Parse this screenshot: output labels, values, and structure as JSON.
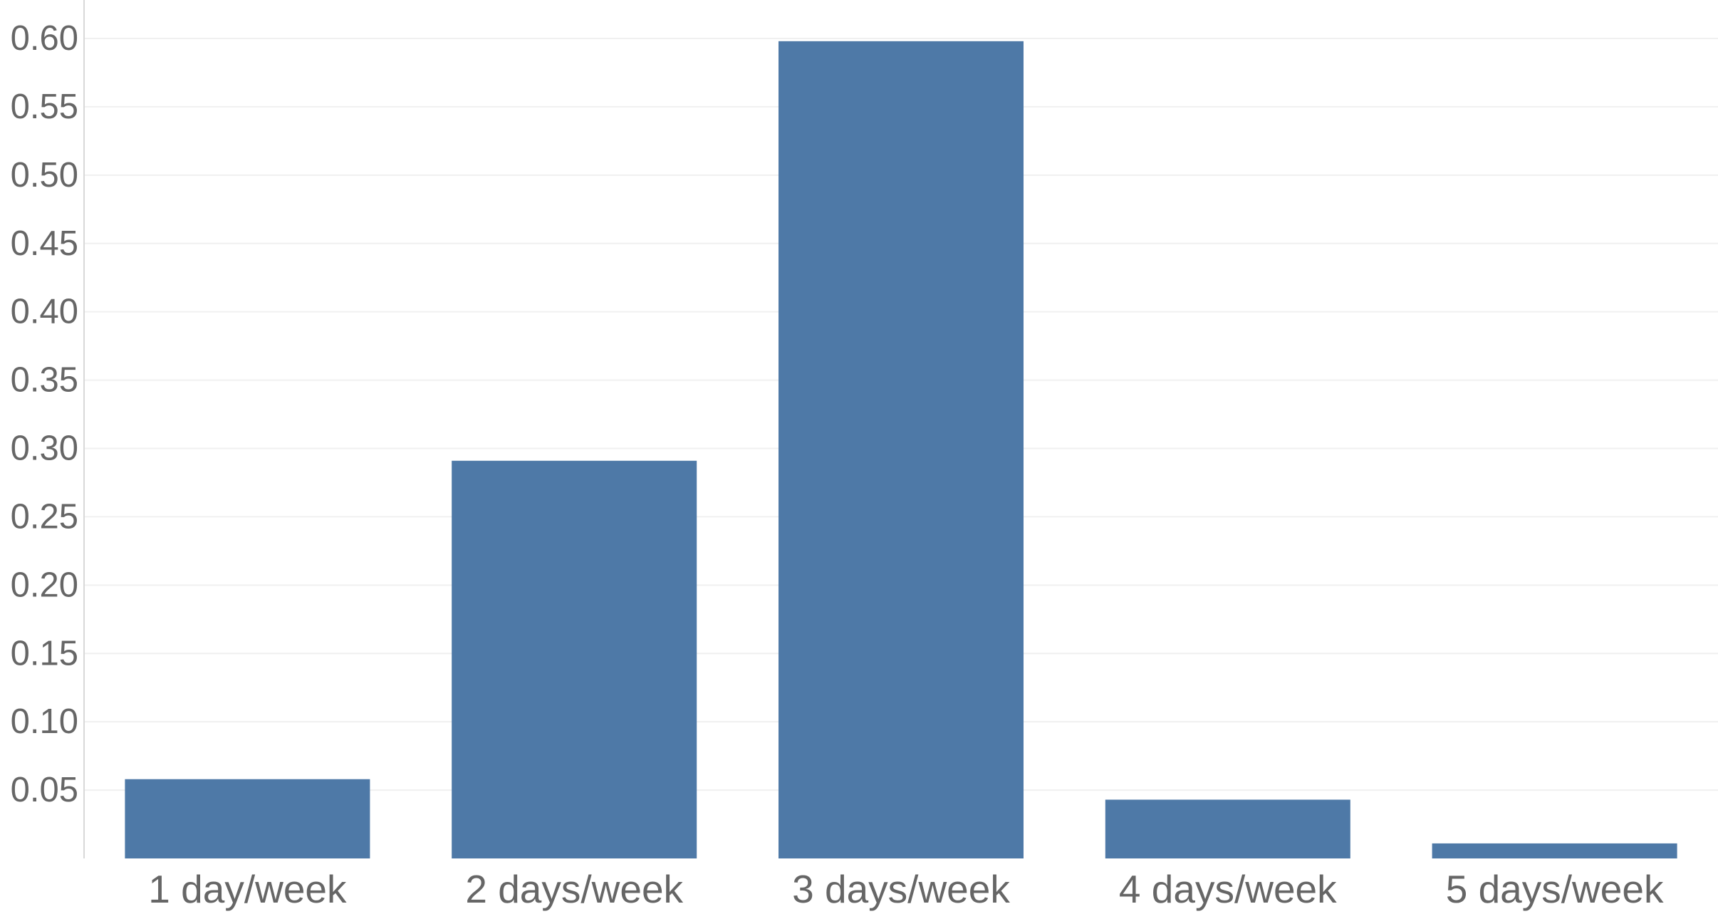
{
  "chart_data": {
    "type": "bar",
    "categories": [
      "1 day/week",
      "2 days/week",
      "3 days/week",
      "4 days/week",
      "5 days/week"
    ],
    "values": [
      0.058,
      0.291,
      0.598,
      0.043,
      0.011
    ],
    "yticks": [
      0.05,
      0.1,
      0.15,
      0.2,
      0.25,
      0.3,
      0.35,
      0.4,
      0.45,
      0.5,
      0.55,
      0.6
    ],
    "ytick_labels": [
      "0.05",
      "0.10",
      "0.15",
      "0.20",
      "0.25",
      "0.30",
      "0.35",
      "0.40",
      "0.45",
      "0.50",
      "0.55",
      "0.60"
    ],
    "ylim": [
      0,
      0.6
    ],
    "title": "",
    "xlabel": "",
    "ylabel": "",
    "grid": true,
    "legend": "none",
    "colors": {
      "bar": "#4e79a7"
    }
  }
}
